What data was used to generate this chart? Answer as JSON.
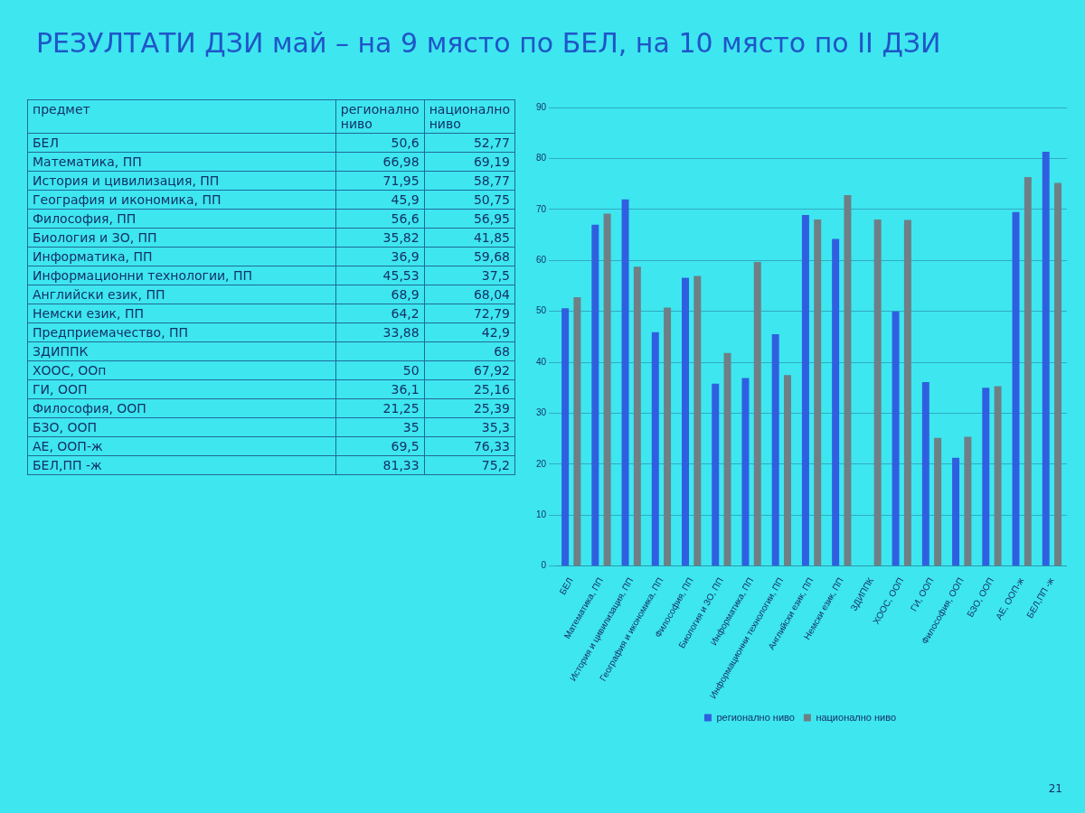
{
  "chart_data": [
    {
      "type": "other",
      "title": "РЕЗУЛТАТИ ДЗИ май – на 9 място по БЕЛ, на 10 място по II ДЗИ",
      "ylabel": "предмет",
      "categories": [
        "БЕЛ",
        "Математика, ПП",
        "История и цивилизация, ПП",
        "География и икономика, ПП",
        "Философия, ПП",
        "Биология и ЗО, ПП",
        "Информатика, ПП",
        "Информационни технологии, ПП",
        "Английски език, ПП",
        "Немски език, ПП",
        "Предприемачество, ПП",
        "ЗДИППК",
        "ХООС, ООп",
        "ГИ, ООП",
        "Философия, ООП",
        "БЗО, ООП",
        "АЕ, ООП-ж",
        "БЕЛ,ПП -ж"
      ],
      "series": [
        {
          "name": "регионално ниво",
          "values": [
            50.6,
            66.98,
            71.95,
            45.9,
            56.6,
            35.82,
            36.9,
            45.53,
            68.9,
            64.2,
            33.88,
            null,
            50,
            36.1,
            21.25,
            35,
            69.5,
            81.33
          ],
          "value_labels": [
            "50,6",
            "66,98",
            "71,95",
            "45,9",
            "56,6",
            "35,82",
            "36,9",
            "45,53",
            "68,9",
            "64,2",
            "33,88",
            null,
            "50",
            "36,1",
            "21,25",
            "35",
            "69,5",
            "81,33"
          ]
        },
        {
          "name": "национално ниво",
          "values": [
            52.77,
            69.19,
            58.77,
            50.75,
            56.95,
            41.85,
            59.68,
            37.5,
            68.04,
            72.79,
            42.9,
            68,
            67.92,
            25.16,
            25.39,
            35.3,
            76.33,
            75.2
          ],
          "value_labels": [
            "52,77",
            "69,19",
            "58,77",
            "50,75",
            "56,95",
            "41,85",
            "59,68",
            "37,5",
            "68,04",
            "72,79",
            "42,9",
            "68",
            "67,92",
            "25,16",
            "25,39",
            "35,3",
            "76,33",
            "75,2"
          ]
        }
      ]
    },
    {
      "type": "bar",
      "categories": [
        "БЕЛ",
        "Математика, ПП",
        "История и цивилизация, ПП",
        "География и икономика, ПП",
        "Философия, ПП",
        "Биология и ЗО, ПП",
        "Информатика, ПП",
        "Информационни технологии, ПП",
        "Английски език, ПП",
        "Немски език, ПП",
        "ЗДИППК",
        "ХООС, ООП",
        "ГИ, ООП",
        "Философия, ООП",
        "БЗО, ООП",
        "АЕ, ООП-ж",
        "БЕЛ,ПП -ж"
      ],
      "series": [
        {
          "name": "регионално ниво",
          "color": "#2f5fe0",
          "values": [
            50.6,
            66.98,
            71.95,
            45.9,
            56.6,
            35.82,
            36.9,
            45.53,
            68.9,
            64.2,
            null,
            50,
            36.1,
            21.25,
            35,
            69.5,
            81.33
          ]
        },
        {
          "name": "национално ниво",
          "color": "#6e7f86",
          "values": [
            52.77,
            69.19,
            58.77,
            50.75,
            56.95,
            41.85,
            59.68,
            37.5,
            68.04,
            72.79,
            68,
            67.92,
            25.16,
            25.39,
            35.3,
            76.33,
            75.2
          ]
        }
      ],
      "ylim": [
        0,
        90
      ],
      "yticks": [
        0,
        10,
        20,
        30,
        40,
        50,
        60,
        70,
        80,
        90
      ],
      "grid": "y",
      "legend": "bottom",
      "annotations": [
        "21"
      ]
    }
  ]
}
